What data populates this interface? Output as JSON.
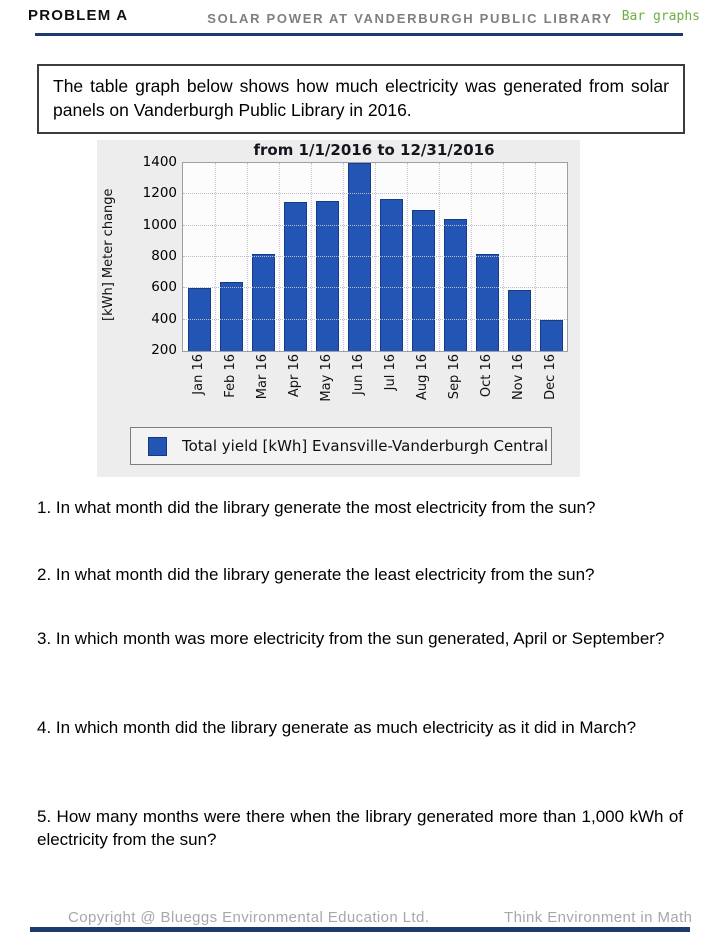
{
  "header": {
    "problem_label": "PROBLEM A",
    "title": "SOLAR POWER AT VANDERBURGH PUBLIC LIBRARY",
    "tag": "Bar graphs",
    "tag_color": "#6fae3e",
    "rule_color": "#1d3a6d"
  },
  "intro_box": {
    "text": "The table graph below shows how much electricity was generated from solar panels on Vanderburgh Public Library in 2016."
  },
  "chart_data": {
    "type": "bar",
    "title": "from 1/1/2016 to 12/31/2016",
    "ylabel": "[kWh] Meter change",
    "categories": [
      "Jan 16",
      "Feb 16",
      "Mar 16",
      "Apr 16",
      "May 16",
      "Jun 16",
      "Jul 16",
      "Aug 16",
      "Sep 16",
      "Oct 16",
      "Nov 16",
      "Dec 16"
    ],
    "values": [
      600,
      640,
      820,
      1150,
      1160,
      1400,
      1170,
      1100,
      1040,
      820,
      590,
      400
    ],
    "ylim": [
      200,
      1400
    ],
    "yticks": [
      200,
      400,
      600,
      800,
      1000,
      1200,
      1400
    ],
    "grid": true,
    "bar_color": "#2355b4",
    "legend": {
      "label": "Total yield [kWh] Evansville-Vanderburgh Central",
      "position": "bottom"
    }
  },
  "questions": [
    {
      "text": "1. In what month did the library generate the most electricity from the sun?"
    },
    {
      "text": "2. In what month did the library generate the least electricity from the sun?"
    },
    {
      "text": "3. In which month was more electricity from the sun generated, April or September?"
    },
    {
      "text": "4. In which month did the library generate as much electricity as it did in March?"
    },
    {
      "text": "5. How many months were there when the library generated more than 1,000 kWh of electricity from the sun?"
    }
  ],
  "footer": {
    "copyright": "Copyright @ Blueggs Environmental Education Ltd.",
    "tagline": "Think Environment in Math"
  }
}
